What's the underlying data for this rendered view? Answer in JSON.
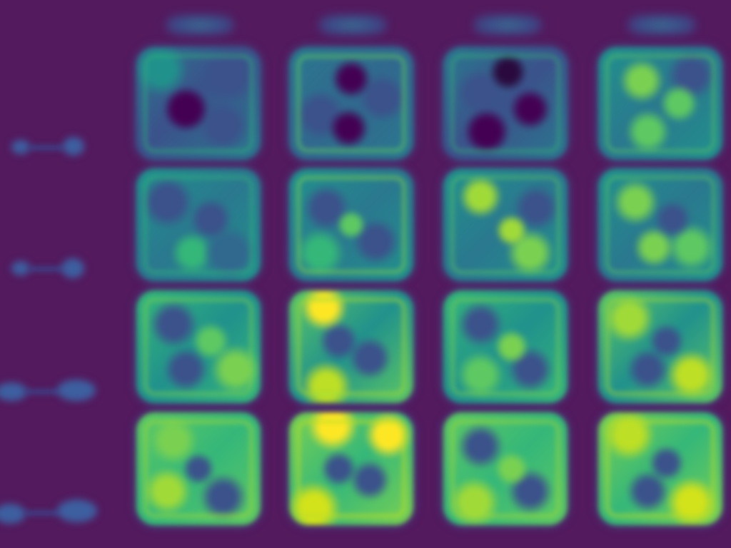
{
  "figure": {
    "background_color": "#531a5e",
    "column_headers": [
      {
        "id": "col-1",
        "text": ""
      },
      {
        "id": "col-2",
        "text": ""
      },
      {
        "id": "col-3",
        "text": ""
      },
      {
        "id": "col-4",
        "text": ""
      }
    ],
    "row_labels": [
      {
        "id": "row-1",
        "icon": "molecule-icon"
      },
      {
        "id": "row-2",
        "icon": "molecule-icon"
      },
      {
        "id": "row-3",
        "icon": "molecule-icon"
      },
      {
        "id": "row-4",
        "icon": "molecule-icon"
      }
    ],
    "colormap": [
      "#440154",
      "#3b528b",
      "#21918c",
      "#5ec962",
      "#fde725"
    ],
    "panels_per_row": 4,
    "rows": 4
  }
}
